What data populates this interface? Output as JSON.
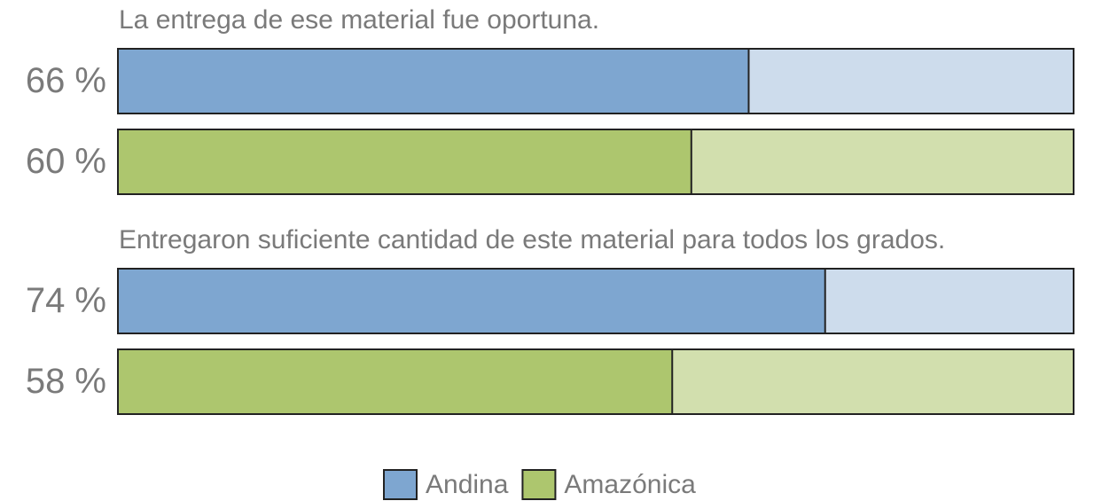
{
  "chart_data": {
    "type": "bar",
    "orientation": "horizontal",
    "categories": [
      "La entrega de ese material fue oportuna.",
      "Entregaron suficiente cantidad de este material para todos los grados."
    ],
    "series": [
      {
        "name": "Andina",
        "color": "#7ea6d0",
        "track_color": "#cddcec",
        "values": [
          66,
          74
        ],
        "value_labels": [
          "66 %",
          "74 %"
        ]
      },
      {
        "name": "Amazónica",
        "color": "#adc66e",
        "track_color": "#d2dfae",
        "values": [
          60,
          58
        ],
        "value_labels": [
          "60 %",
          "58 %"
        ]
      }
    ],
    "xlim": [
      0,
      100
    ],
    "legend": "bottom"
  }
}
